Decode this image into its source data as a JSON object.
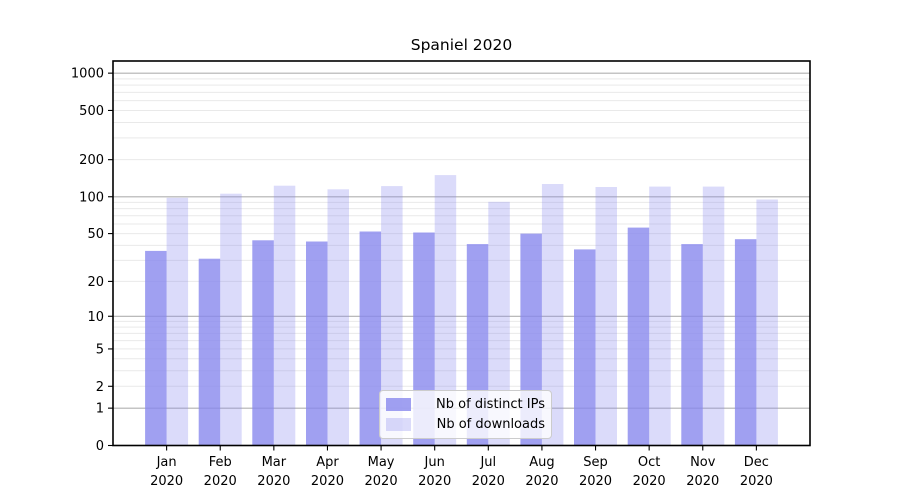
{
  "chart_data": {
    "type": "bar",
    "title": "Spaniel 2020",
    "categories": [
      "Jan",
      "Feb",
      "Mar",
      "Apr",
      "May",
      "Jun",
      "Jul",
      "Aug",
      "Sep",
      "Oct",
      "Nov",
      "Dec"
    ],
    "x_year_label": "2020",
    "series": [
      {
        "name": "Nb of distinct IPs",
        "color": "#8888ee",
        "opacity": 0.8,
        "values": [
          36,
          31,
          44,
          43,
          52,
          51,
          41,
          50,
          37,
          56,
          41,
          45
        ]
      },
      {
        "name": "Nb of downloads",
        "color": "#8888ee",
        "opacity": 0.3,
        "values": [
          98,
          106,
          123,
          115,
          122,
          150,
          91,
          127,
          120,
          121,
          121,
          95
        ]
      }
    ],
    "yscale": "log10(1+y)",
    "ylim": [
      0,
      1253
    ],
    "yticks": [
      0,
      1,
      2,
      5,
      10,
      20,
      50,
      100,
      200,
      500,
      1000
    ],
    "grid": {
      "major": [
        1,
        10,
        100,
        1000
      ],
      "minor": [
        2,
        3,
        4,
        5,
        6,
        7,
        8,
        9,
        20,
        30,
        40,
        50,
        60,
        70,
        80,
        90,
        200,
        300,
        400,
        500,
        600,
        700,
        800,
        900
      ],
      "major_color": "#b0b0b0",
      "minor_color": "#e9e9e9"
    },
    "axis_color": "#000000",
    "text_color": "#000000",
    "legend_position": "lower center"
  }
}
